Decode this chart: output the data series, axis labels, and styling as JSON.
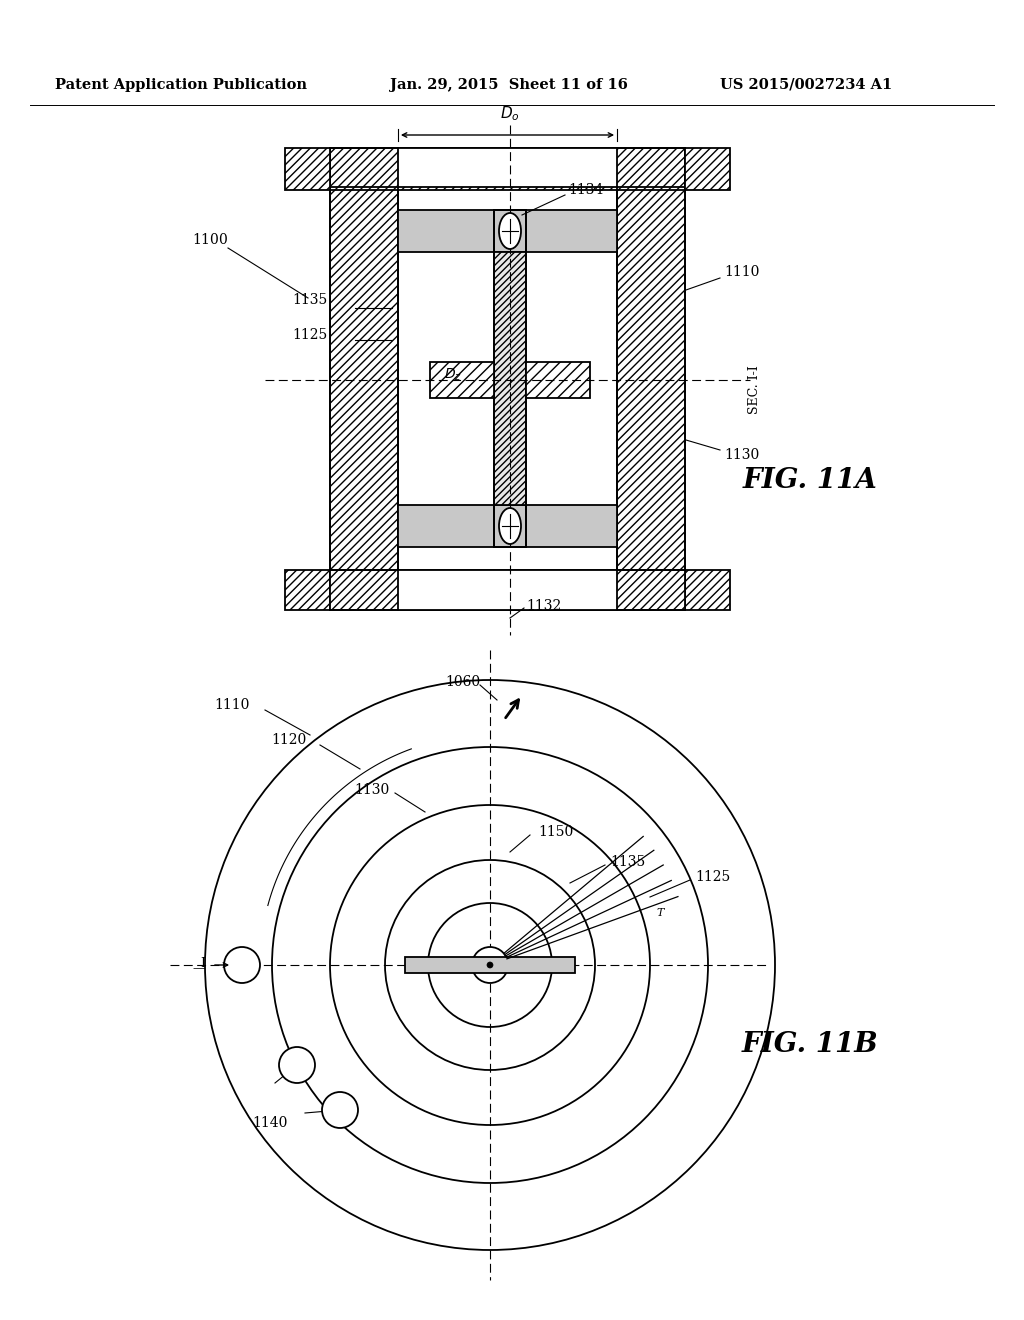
{
  "header_left": "Patent Application Publication",
  "header_center": "Jan. 29, 2015  Sheet 11 of 16",
  "header_right": "US 2015/0027234 A1",
  "fig_a_label": "FIG. 11A",
  "fig_b_label": "FIG. 11B",
  "sec_label": "SEC. I-I",
  "background_color": "#ffffff",
  "line_color": "#000000",
  "gray_fill": "#c8c8c8",
  "hatch_gray": "#a0a0a0"
}
